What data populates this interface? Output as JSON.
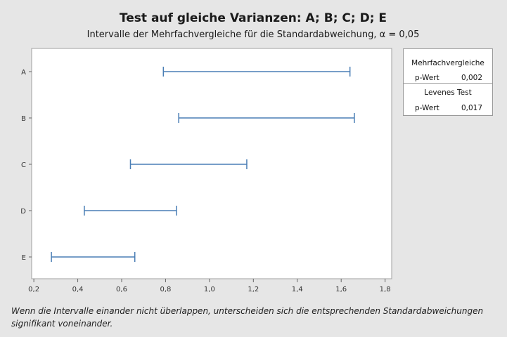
{
  "chart_data": {
    "type": "interval",
    "title": "Test auf gleiche Varianzen: A; B; C; D; E",
    "subtitle": "Intervalle der Mehrfachvergleiche für die Standardabweichung, α = 0,05",
    "categories": [
      "A",
      "B",
      "C",
      "D",
      "E"
    ],
    "intervals": [
      {
        "category": "A",
        "lower": 0.79,
        "upper": 1.64
      },
      {
        "category": "B",
        "lower": 0.86,
        "upper": 1.66
      },
      {
        "category": "C",
        "lower": 0.64,
        "upper": 1.17
      },
      {
        "category": "D",
        "lower": 0.43,
        "upper": 0.85
      },
      {
        "category": "E",
        "lower": 0.28,
        "upper": 0.66
      }
    ],
    "x_ticks": [
      "0,2",
      "0,4",
      "0,6",
      "0,8",
      "1,0",
      "1,2",
      "1,4",
      "1,6",
      "1,8"
    ],
    "x_tick_values": [
      0.2,
      0.4,
      0.6,
      0.8,
      1.0,
      1.2,
      1.4,
      1.6,
      1.8
    ],
    "xlim": [
      0.19,
      1.83
    ],
    "interval_color": "#4a7eb5",
    "grid": false
  },
  "stats": {
    "multi_header": "Mehrfachvergleiche",
    "multi_label": "p-Wert",
    "multi_value": "0,002",
    "levene_header": "Levenes Test",
    "levene_label": "p-Wert",
    "levene_value": "0,017"
  },
  "note": {
    "line1": "Wenn die Intervalle einander nicht überlappen, unterscheiden sich die entsprechenden Standardabweichungen",
    "line2": "signifikant voneinander."
  }
}
